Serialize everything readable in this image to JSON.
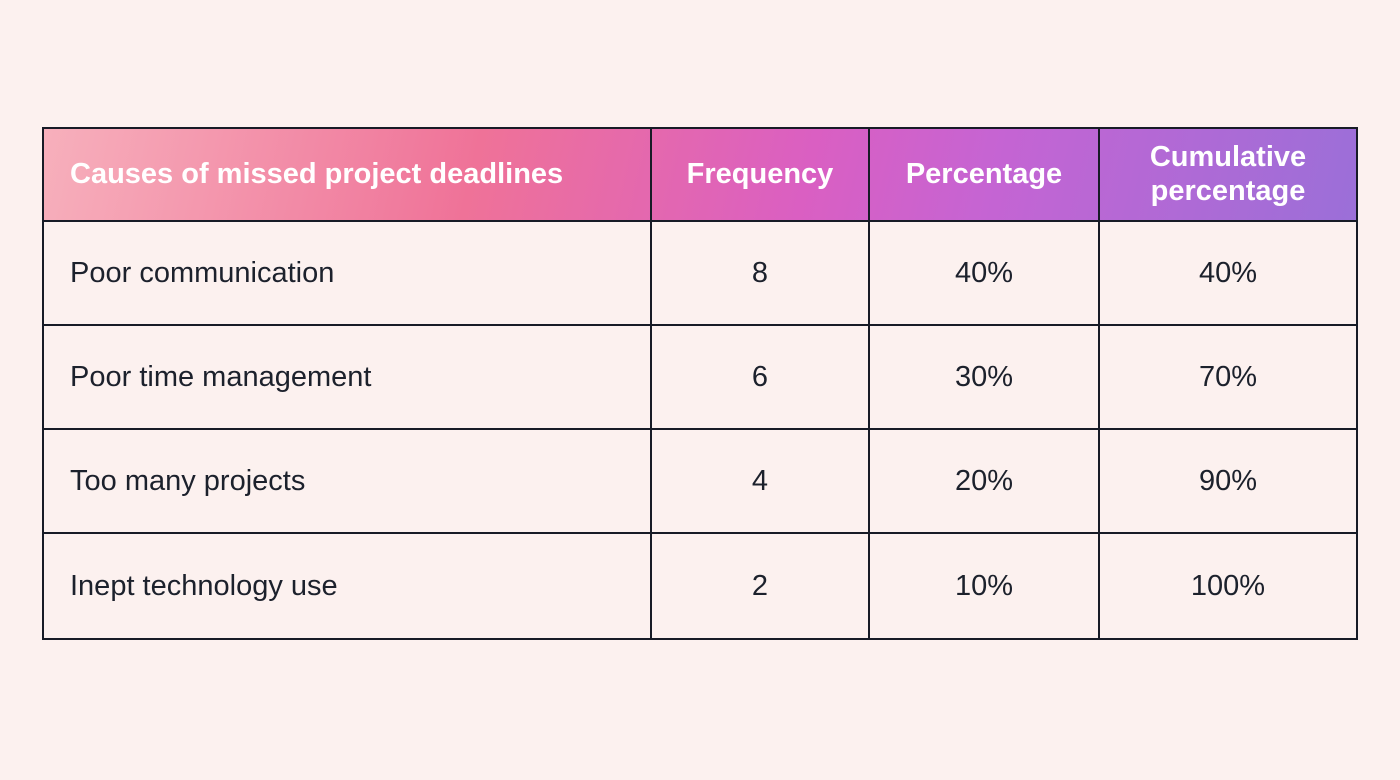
{
  "page": {
    "background_color": "#FCF1EF",
    "border_color": "#171B26",
    "body_text_color": "#1C212C",
    "header_text_color": "#FFFFFF",
    "header_gradient": [
      "#F7B0BC",
      "#EF7298",
      "#DA5FC2",
      "#9B6FD8"
    ]
  },
  "table": {
    "header": {
      "causes": "Causes of missed project deadlines",
      "frequency": "Frequency",
      "percentage": "Percentage",
      "cumulative": "Cumulative percentage"
    },
    "rows": [
      {
        "cause": "Poor communication",
        "frequency": "8",
        "percentage": "40%",
        "cumulative": "40%"
      },
      {
        "cause": "Poor time management",
        "frequency": "6",
        "percentage": "30%",
        "cumulative": "70%"
      },
      {
        "cause": "Too many projects",
        "frequency": "4",
        "percentage": "20%",
        "cumulative": "90%"
      },
      {
        "cause": "Inept technology use",
        "frequency": "2",
        "percentage": "10%",
        "cumulative": "100%"
      }
    ]
  },
  "chart_data": {
    "type": "table",
    "title": "",
    "columns": [
      "Causes of missed project deadlines",
      "Frequency",
      "Percentage",
      "Cumulative percentage"
    ],
    "rows": [
      [
        "Poor communication",
        8,
        "40%",
        "40%"
      ],
      [
        "Poor time management",
        6,
        "30%",
        "70%"
      ],
      [
        "Too many projects",
        4,
        "20%",
        "90%"
      ],
      [
        "Inept technology use",
        2,
        "10%",
        "100%"
      ]
    ],
    "frequency_values": [
      8,
      6,
      4,
      2
    ],
    "percentage_values": [
      40,
      30,
      20,
      10
    ],
    "cumulative_values": [
      40,
      70,
      90,
      100
    ]
  }
}
